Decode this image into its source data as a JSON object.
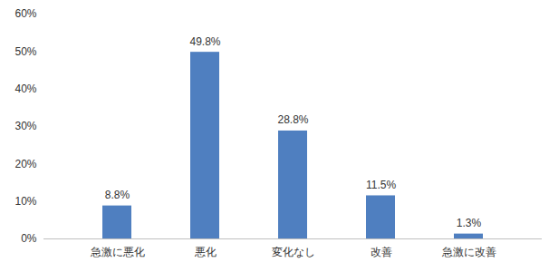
{
  "chart_data": {
    "type": "bar",
    "categories": [
      "急激に悪化",
      "悪化",
      "変化なし",
      "改善",
      "急激に改善"
    ],
    "values": [
      8.8,
      49.8,
      28.8,
      11.5,
      1.3
    ],
    "value_labels": [
      "8.8%",
      "49.8%",
      "28.8%",
      "11.5%",
      "1.3%"
    ],
    "color": "#4f7fc0",
    "ylim": [
      0,
      60
    ],
    "yticks": [
      {
        "value": 0,
        "label": "0%"
      },
      {
        "value": 10,
        "label": "10%"
      },
      {
        "value": 20,
        "label": "20%"
      },
      {
        "value": 30,
        "label": "30%"
      },
      {
        "value": 40,
        "label": "40%"
      },
      {
        "value": 50,
        "label": "50%"
      },
      {
        "value": 60,
        "label": "60%"
      }
    ],
    "grid": false,
    "data_labels": true
  }
}
